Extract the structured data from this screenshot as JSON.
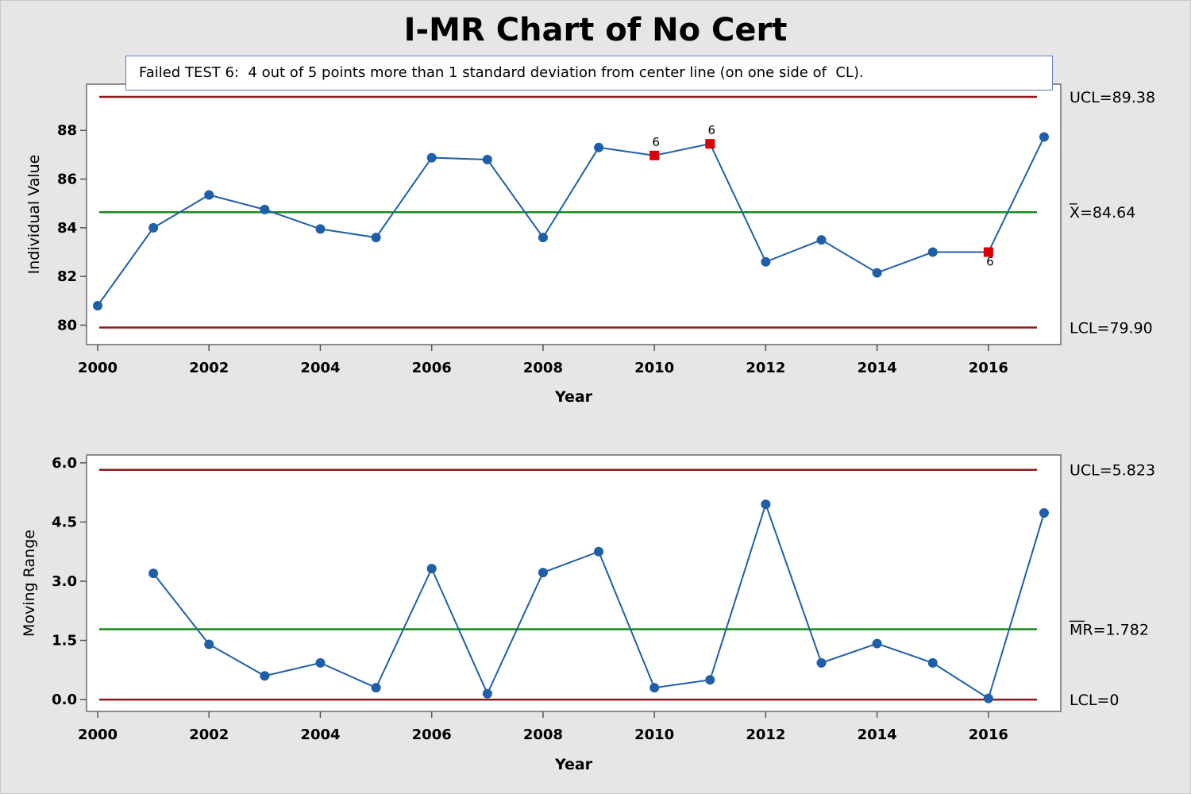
{
  "title": "I-MR Chart of No Cert",
  "note": "Failed TEST 6:  4 out of 5 points more than 1 standard deviation from center line (on one side of  CL).",
  "colors": {
    "series": "#1f5fa8",
    "center": "#1a8a1a",
    "limit": "#8b1a1a",
    "flag": "#dd0000"
  },
  "chart_data": [
    {
      "type": "line",
      "xlabel": "Year",
      "ylabel": "Individual Value",
      "xlim": [
        1999.8,
        2017.3
      ],
      "ylim": [
        79.2,
        89.9
      ],
      "x_ticks": [
        2000,
        2002,
        2004,
        2006,
        2008,
        2010,
        2012,
        2014,
        2016
      ],
      "y_ticks": [
        80,
        82,
        84,
        86,
        88
      ],
      "x": [
        2000,
        2001,
        2002,
        2003,
        2004,
        2005,
        2006,
        2007,
        2008,
        2009,
        2010,
        2011,
        2012,
        2013,
        2014,
        2015,
        2016,
        2017
      ],
      "values": [
        80.8,
        84.0,
        85.35,
        84.75,
        83.95,
        83.6,
        86.88,
        86.8,
        83.6,
        87.3,
        86.97,
        87.45,
        82.6,
        83.5,
        82.15,
        83.0,
        83.0,
        87.73
      ],
      "flags": [
        {
          "x": 2010,
          "label": "6",
          "position": "above"
        },
        {
          "x": 2011,
          "label": "6",
          "position": "above"
        },
        {
          "x": 2016,
          "label": "6",
          "position": "below"
        }
      ],
      "limits": {
        "ucl": {
          "value": 89.38,
          "label": "UCL=89.38"
        },
        "center": {
          "value": 84.64,
          "label": "X=84.64",
          "bar": "_"
        },
        "lcl": {
          "value": 79.9,
          "label": "LCL=79.90"
        }
      }
    },
    {
      "type": "line",
      "xlabel": "Year",
      "ylabel": "Moving Range",
      "xlim": [
        1999.8,
        2017.3
      ],
      "ylim": [
        -0.3,
        6.2
      ],
      "x_ticks": [
        2000,
        2002,
        2004,
        2006,
        2008,
        2010,
        2012,
        2014,
        2016
      ],
      "y_ticks": [
        "0.0",
        "1.5",
        "3.0",
        "4.5",
        "6.0"
      ],
      "x": [
        2001,
        2002,
        2003,
        2004,
        2005,
        2006,
        2007,
        2008,
        2009,
        2010,
        2011,
        2012,
        2013,
        2014,
        2015,
        2016,
        2017
      ],
      "values": [
        3.2,
        1.4,
        0.6,
        0.93,
        0.3,
        3.32,
        0.15,
        3.22,
        3.75,
        0.3,
        0.5,
        4.95,
        0.93,
        1.42,
        0.93,
        0.03,
        4.73
      ],
      "limits": {
        "ucl": {
          "value": 5.823,
          "label": "UCL=5.823"
        },
        "center": {
          "value": 1.782,
          "label": "MR=1.782",
          "bar": "__"
        },
        "lcl": {
          "value": 0,
          "label": "LCL=0"
        }
      }
    }
  ]
}
